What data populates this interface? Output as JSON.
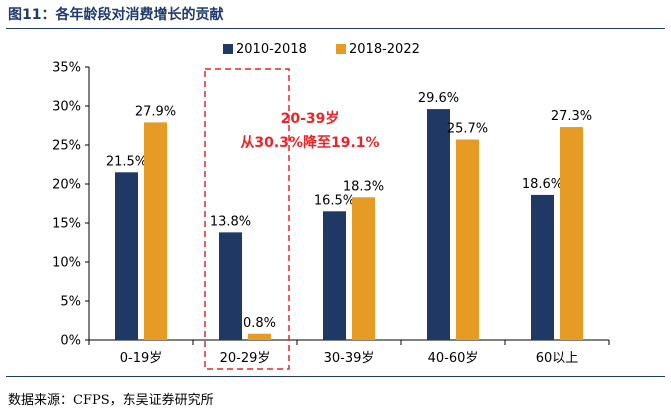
{
  "figure": {
    "title": "图11：各年龄段对消费增长的贡献",
    "source": "数据来源：CFPS，东吴证券研究所"
  },
  "chart_data": {
    "type": "bar",
    "title": "",
    "xlabel": "",
    "ylabel": "",
    "categories": [
      "0-19岁",
      "20-29岁",
      "30-39岁",
      "40-60岁",
      "60以上"
    ],
    "series": [
      {
        "name": "2010-2018",
        "values": [
          21.5,
          13.8,
          16.5,
          29.6,
          18.6
        ],
        "labels": [
          "21.5%",
          "13.8%",
          "16.5%",
          "29.6%",
          "18.6%"
        ],
        "color": "#1f3864"
      },
      {
        "name": "2018-2022",
        "values": [
          27.9,
          0.8,
          18.3,
          25.7,
          27.3
        ],
        "labels": [
          "27.9%",
          "0.8%",
          "18.3%",
          "25.7%",
          "27.3%"
        ],
        "color": "#e69b24"
      }
    ],
    "ylim": [
      0,
      35
    ],
    "yticks": [
      0,
      5,
      10,
      15,
      20,
      25,
      30,
      35
    ],
    "ytick_labels": [
      "0%",
      "5%",
      "10%",
      "15%",
      "20%",
      "25%",
      "30%",
      "35%"
    ],
    "grid": false,
    "legend_position": "top-center",
    "annotation": {
      "lines": [
        "20-39岁",
        "从30.3%降至19.1%"
      ],
      "color": "#e8262a",
      "highlight_category": "20-29岁"
    }
  }
}
